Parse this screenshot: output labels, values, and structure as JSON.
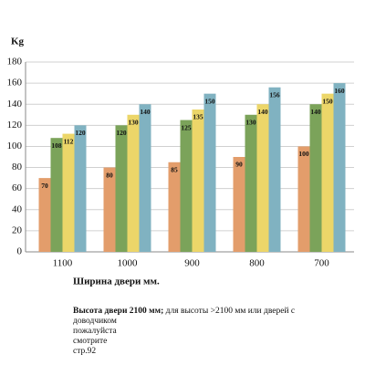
{
  "chart_data": {
    "type": "bar",
    "y_label": "Kg",
    "x_label": "Ширина двери мм.",
    "note_bold": "Высота двери 2100 мм;",
    "note_text": "для высоты >2100 мм или дверей с доводчиком пожалуйста смотрите стр.92",
    "categories": [
      "1100",
      "1000",
      "900",
      "800",
      "700"
    ],
    "series": [
      {
        "color": "#e39d6b",
        "values": [
          70,
          80,
          85,
          90,
          100
        ]
      },
      {
        "color": "#7ba35a",
        "values": [
          108,
          120,
          125,
          130,
          140
        ]
      },
      {
        "color": "#ecd669",
        "values": [
          112,
          130,
          135,
          140,
          150
        ]
      },
      {
        "color": "#80b2c1",
        "values": [
          120,
          140,
          150,
          156,
          160
        ]
      }
    ],
    "ylim": [
      0,
      180
    ],
    "yticks": [
      0,
      20,
      40,
      60,
      80,
      100,
      120,
      140,
      160,
      180
    ],
    "grid": true
  }
}
